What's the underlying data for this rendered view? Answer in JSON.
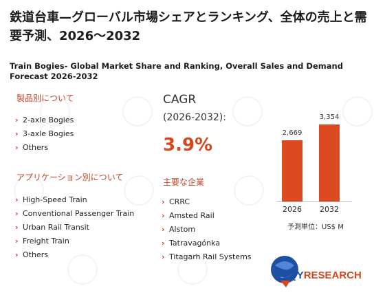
{
  "title_jp": "鉄道台車—グローバル市場シェアとランキング、全体の売上と需要予測、2026～2032",
  "title_en": "Train Bogies- Global Market Share and Ranking, Overall Sales and Demand Forecast 2026-2032",
  "product_section": {
    "heading": "製品別について",
    "items": [
      "2-axle Bogies",
      "3-axle Bogies",
      "Others"
    ]
  },
  "application_section": {
    "heading": "アプリケーション別について",
    "items": [
      "High-Speed Train",
      "Conventional Passenger Train",
      "Urban Rail Transit",
      "Freight Train",
      "Others"
    ]
  },
  "cagr": {
    "label": "CAGR",
    "period": "(2026-2032):",
    "value": "3.9%"
  },
  "companies_section": {
    "heading": "主要な企業",
    "items": [
      "CRRC",
      "Amsted Rail",
      "Alstom",
      "Tatravagónka",
      "Titagarh Rail Systems"
    ]
  },
  "chart_data": {
    "type": "bar",
    "categories": [
      "2026",
      "2032"
    ],
    "values": [
      2669,
      3354
    ],
    "value_labels": [
      "2,669",
      "3,354"
    ],
    "unit_label": "予測単位：US$ M",
    "bar_color": "#dc4a22"
  },
  "logo": {
    "text_main": "QY",
    "text_accent": "RESEARCH"
  },
  "colors": {
    "accent": "#d4481f",
    "heading": "#c4452a",
    "logo_blue": "#1d4fa3"
  }
}
